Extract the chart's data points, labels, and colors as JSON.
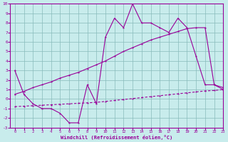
{
  "bg_color": "#c8ecec",
  "grid_color": "#88bbbb",
  "line_color": "#990099",
  "x": [
    0,
    1,
    2,
    3,
    4,
    5,
    6,
    7,
    8,
    9,
    10,
    11,
    12,
    13,
    14,
    15,
    16,
    17,
    18,
    19,
    20,
    21,
    22,
    23
  ],
  "y_noisy": [
    3.0,
    0.5,
    -0.5,
    -1.0,
    -1.0,
    -1.5,
    -2.5,
    -2.5,
    1.5,
    -0.5,
    6.5,
    8.5,
    7.5,
    10.0,
    8.0,
    8.0,
    7.5,
    7.0,
    8.5,
    7.5,
    4.5,
    1.5,
    1.5,
    1.0
  ],
  "y_upper": [
    0.5,
    0.8,
    1.2,
    1.5,
    1.8,
    2.2,
    2.5,
    2.8,
    3.2,
    3.6,
    4.0,
    4.5,
    5.0,
    5.4,
    5.8,
    6.2,
    6.5,
    6.8,
    7.1,
    7.4,
    7.5,
    7.5,
    1.5,
    1.2
  ],
  "y_lower": [
    -0.8,
    -0.75,
    -0.7,
    -0.65,
    -0.6,
    -0.55,
    -0.5,
    -0.45,
    -0.4,
    -0.35,
    -0.25,
    -0.15,
    -0.05,
    0.05,
    0.15,
    0.25,
    0.35,
    0.45,
    0.55,
    0.65,
    0.75,
    0.85,
    0.9,
    1.0
  ],
  "ylim": [
    -3,
    10
  ],
  "xlim": [
    -0.5,
    23
  ],
  "yticks": [
    -3,
    -2,
    -1,
    0,
    1,
    2,
    3,
    4,
    5,
    6,
    7,
    8,
    9,
    10
  ],
  "xticks": [
    0,
    1,
    2,
    3,
    4,
    5,
    6,
    7,
    8,
    9,
    10,
    11,
    12,
    13,
    14,
    15,
    16,
    17,
    18,
    19,
    20,
    21,
    22,
    23
  ],
  "xlabel": "Windchill (Refroidissement éolien,°C)"
}
